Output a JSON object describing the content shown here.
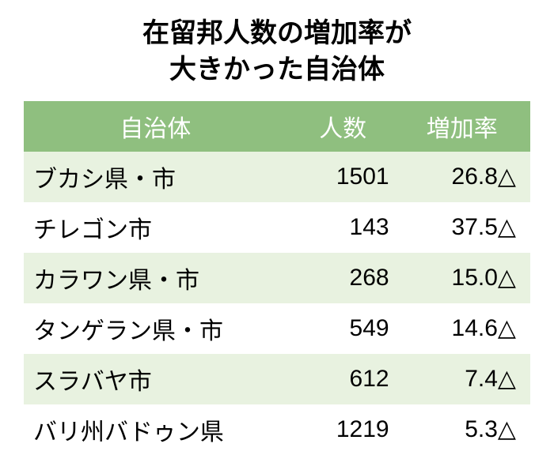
{
  "title_line1": "在留邦人数の増加率が",
  "title_line2": "大きかった自治体",
  "colors": {
    "header_bg": "#8fbf7f",
    "row_even_bg": "#e8f2e0",
    "row_odd_bg": "#ffffff",
    "header_text": "#ffffff",
    "body_text": "#000000"
  },
  "columns": [
    "自治体",
    "人数",
    "増加率"
  ],
  "rows": [
    {
      "name": "ブカシ県・市",
      "count": "1501",
      "rate": "26.8△"
    },
    {
      "name": "チレゴン市",
      "count": "143",
      "rate": "37.5△"
    },
    {
      "name": "カラワン県・市",
      "count": "268",
      "rate": "15.0△"
    },
    {
      "name": "タンゲラン県・市",
      "count": "549",
      "rate": "14.6△"
    },
    {
      "name": "スラバヤ市",
      "count": "612",
      "rate": "7.4△"
    },
    {
      "name": "バリ州バドゥン県",
      "count": "1219",
      "rate": "5.3△"
    }
  ]
}
